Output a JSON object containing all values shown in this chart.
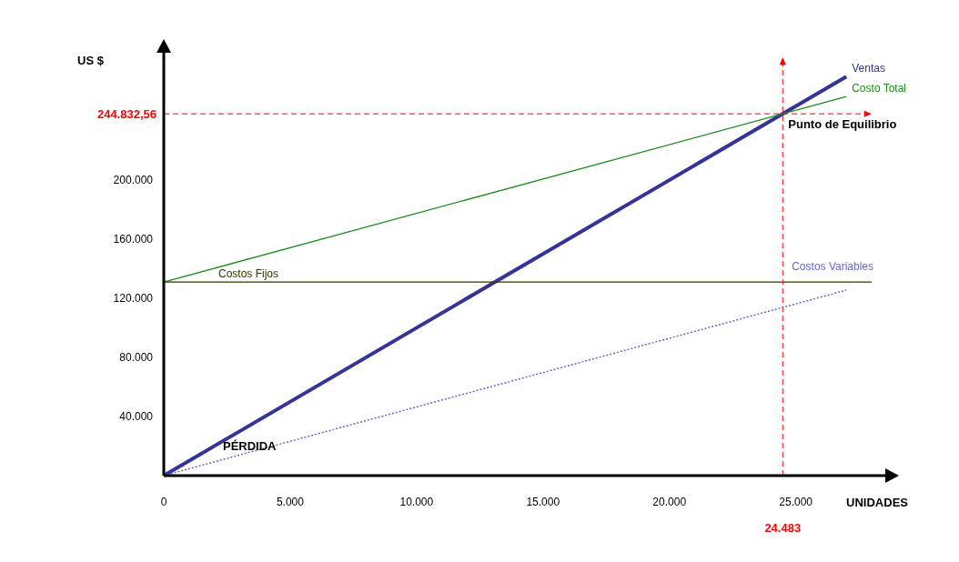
{
  "chart_data": {
    "type": "line",
    "xlabel": "UNIDADES",
    "ylabel": "US $",
    "xlim": [
      0,
      28000
    ],
    "ylim": [
      0,
      280000
    ],
    "xticks": [
      0,
      {
        "value": 5000,
        "label": "5.000"
      },
      {
        "value": 10000,
        "label": "10.000"
      },
      {
        "value": 15000,
        "label": "15.000"
      },
      {
        "value": 20000,
        "label": "20.000"
      },
      {
        "value": 25000,
        "label": "25.000"
      }
    ],
    "yticks": [
      {
        "value": 40000,
        "label": "40.000"
      },
      {
        "value": 80000,
        "label": "80.000"
      },
      {
        "value": 120000,
        "label": "120.000"
      },
      {
        "value": 160000,
        "label": "160.000"
      },
      {
        "value": 200000,
        "label": "200.000"
      }
    ],
    "series": [
      {
        "name": "Ventas",
        "color": "#333399",
        "x": [
          0,
          27000
        ],
        "values": [
          0,
          270000
        ]
      },
      {
        "name": "Costo Total",
        "color": "#1a8c1a",
        "x": [
          0,
          27000
        ],
        "values": [
          131000,
          256500
        ]
      },
      {
        "name": "Costos Fijos",
        "color": "#333300",
        "x": [
          0,
          28000
        ],
        "values": [
          131000,
          131000
        ]
      },
      {
        "name": "Costos Variables",
        "color": "#6666cc",
        "x": [
          0,
          27000
        ],
        "values": [
          0,
          125500
        ],
        "line_style": "dotted"
      }
    ],
    "ref_lines": [
      {
        "axis": "x",
        "value": 24483,
        "label": "24.483",
        "color": "#ff0000",
        "line_style": "dashed"
      },
      {
        "axis": "y",
        "value": 244832.56,
        "label": "244.832,56",
        "color": "#ff0000",
        "line_style": "dashed"
      }
    ],
    "annotations": [
      {
        "text": "Punto de Equilibrio",
        "x": 24483,
        "y": 244832.56
      },
      "PÉRDIDA"
    ],
    "grid": false,
    "marker": "none",
    "line_style": "solid"
  }
}
